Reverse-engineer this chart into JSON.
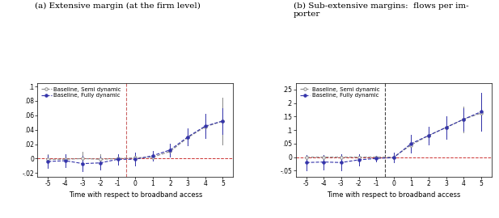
{
  "panel_a_title": "(a) Extensive margin (at the firm level)",
  "panel_b_title": "(b) Sub-extensive margins:  flows per im-\nporter",
  "xlabel": "Time with respect to broadband access",
  "x": [
    -5,
    -4,
    -3,
    -2,
    -1,
    0,
    1,
    2,
    3,
    4,
    5
  ],
  "a_fully_y": [
    -0.004,
    -0.003,
    -0.007,
    -0.006,
    -0.001,
    -0.001,
    0.004,
    0.012,
    0.03,
    0.045,
    0.052
  ],
  "a_fully_lo": [
    -0.013,
    -0.012,
    -0.018,
    -0.015,
    -0.008,
    -0.01,
    -0.003,
    0.003,
    0.018,
    0.028,
    0.034
  ],
  "a_fully_hi": [
    0.005,
    0.006,
    0.004,
    0.003,
    0.006,
    0.008,
    0.011,
    0.021,
    0.042,
    0.062,
    0.07
  ],
  "a_semi_y": [
    -0.001,
    -0.001,
    0.0,
    -0.001,
    0.0,
    0.001,
    0.002,
    0.01,
    0.029,
    0.044,
    0.052
  ],
  "a_semi_lo": [
    -0.008,
    -0.007,
    -0.009,
    -0.008,
    -0.004,
    -0.002,
    0.001,
    0.003,
    0.018,
    0.034,
    0.02
  ],
  "a_semi_hi": [
    0.006,
    0.005,
    0.009,
    0.006,
    0.004,
    0.004,
    0.003,
    0.017,
    0.04,
    0.054,
    0.084
  ],
  "b_fully_y": [
    -0.02,
    -0.018,
    -0.02,
    -0.01,
    -0.005,
    -0.002,
    0.05,
    0.08,
    0.11,
    0.14,
    0.168
  ],
  "b_fully_lo": [
    -0.048,
    -0.045,
    -0.05,
    -0.03,
    -0.015,
    -0.02,
    0.018,
    0.048,
    0.068,
    0.098,
    0.098
  ],
  "b_fully_hi": [
    0.008,
    0.009,
    0.01,
    0.01,
    0.005,
    0.016,
    0.082,
    0.112,
    0.152,
    0.182,
    0.238
  ],
  "b_semi_y": [
    0.0,
    0.0,
    0.0,
    0.0,
    0.0,
    0.0,
    0.045,
    0.08,
    0.11,
    0.14,
    0.163
  ],
  "b_semi_lo": [
    -0.008,
    -0.008,
    -0.012,
    -0.008,
    -0.004,
    -0.008,
    0.025,
    0.055,
    0.078,
    0.092,
    0.098
  ],
  "b_semi_hi": [
    0.008,
    0.008,
    0.012,
    0.008,
    0.004,
    0.008,
    0.065,
    0.105,
    0.142,
    0.188,
    0.228
  ],
  "color_fully": "#3333aa",
  "color_semi": "#888888",
  "color_hline": "#cc3333",
  "color_vline_a": "#cc6666",
  "color_vline_b": "#444444",
  "a_ylim": [
    -0.025,
    0.105
  ],
  "a_yticks": [
    -0.02,
    0.0,
    0.02,
    0.04,
    0.06,
    0.08,
    0.1
  ],
  "a_yticklabels": [
    "-.02",
    "0",
    ".02",
    ".04",
    ".06",
    ".08",
    ".1"
  ],
  "b_ylim": [
    -0.072,
    0.275
  ],
  "b_yticks": [
    -0.05,
    0.0,
    0.05,
    0.1,
    0.15,
    0.2,
    0.25
  ],
  "b_yticklabels": [
    "-.05",
    "0",
    ".05",
    ".1",
    ".15",
    ".2",
    ".25"
  ],
  "xlim_a": [
    -5.6,
    5.6
  ],
  "xlim_b": [
    -5.6,
    5.6
  ],
  "xticks": [
    -5,
    -4,
    -3,
    -2,
    -1,
    0,
    1,
    2,
    3,
    4,
    5
  ]
}
